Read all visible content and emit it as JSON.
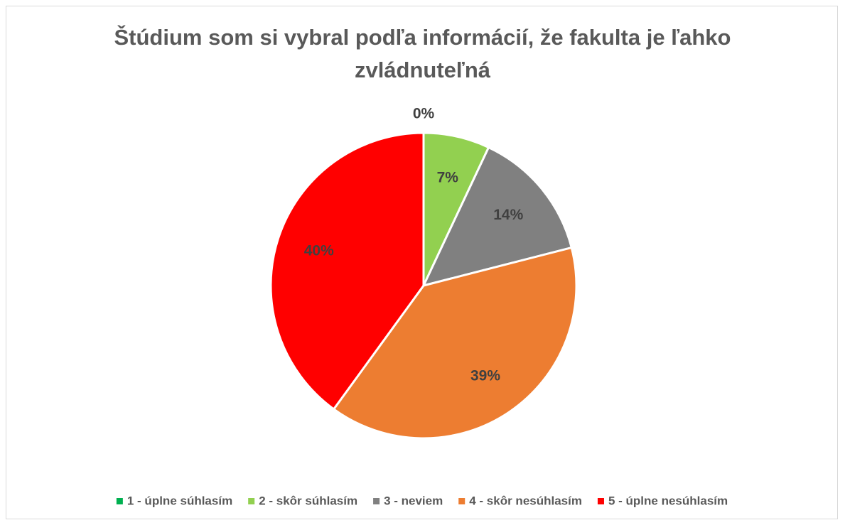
{
  "chart_data": {
    "type": "pie",
    "title": "Štúdium som si vybral podľa informácií, že fakulta je ľahko zvládnuteľná",
    "categories": [
      "1 - úplne súhlasím",
      "2 - skôr súhlasím",
      "3 - neviem",
      "4 - skôr nesúhlasím",
      "5 - úplne nesúhlasím"
    ],
    "values": [
      0,
      7,
      14,
      39,
      40
    ],
    "value_labels": [
      "0%",
      "7%",
      "14%",
      "39%",
      "40%"
    ],
    "colors": [
      "#00b050",
      "#92d050",
      "#808080",
      "#ed7d31",
      "#ff0000"
    ],
    "legend": "bottom"
  }
}
